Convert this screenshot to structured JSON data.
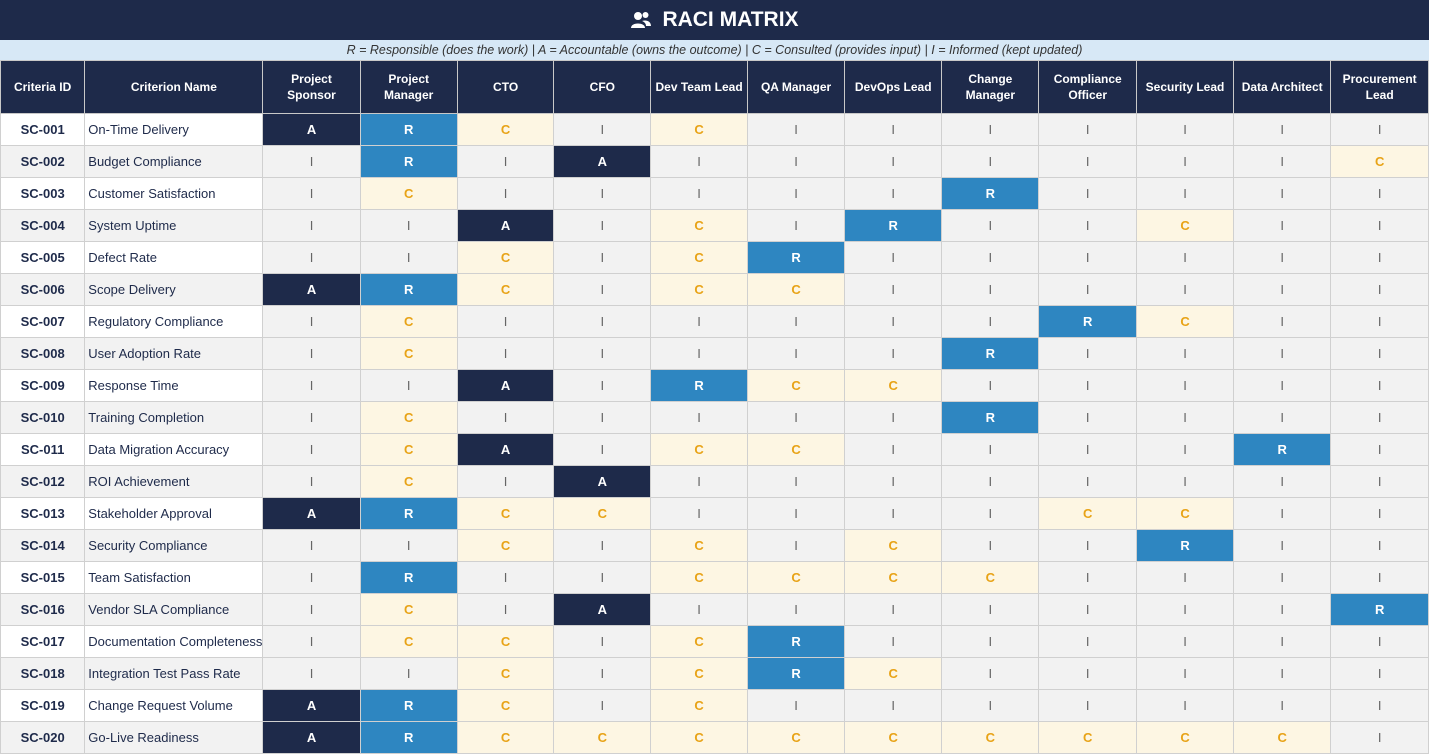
{
  "title": "RACI MATRIX",
  "legend": "R = Responsible (does the work)  |  A = Accountable (owns the outcome)  |  C = Consulted (provides input)  |  I = Informed (kept updated)",
  "colors": {
    "accountable": "#1e2a4a",
    "responsible": "#2e86c1",
    "consulted": "#fdf6e3",
    "informed": "#f2f2f2"
  },
  "columns": [
    "Criteria ID",
    "Criterion Name",
    "Project Sponsor",
    "Project Manager",
    "CTO",
    "CFO",
    "Dev Team Lead",
    "QA Manager",
    "DevOps Lead",
    "Change Manager",
    "Compliance Officer",
    "Security Lead",
    "Data Architect",
    "Procurement Lead"
  ],
  "rows": [
    {
      "id": "SC-001",
      "name": "On-Time Delivery",
      "roles": [
        "A",
        "R",
        "C",
        "I",
        "C",
        "I",
        "I",
        "I",
        "I",
        "I",
        "I",
        "I"
      ]
    },
    {
      "id": "SC-002",
      "name": "Budget Compliance",
      "roles": [
        "I",
        "R",
        "I",
        "A",
        "I",
        "I",
        "I",
        "I",
        "I",
        "I",
        "I",
        "C"
      ]
    },
    {
      "id": "SC-003",
      "name": "Customer Satisfaction",
      "roles": [
        "I",
        "C",
        "I",
        "I",
        "I",
        "I",
        "I",
        "R",
        "I",
        "I",
        "I",
        "I"
      ]
    },
    {
      "id": "SC-004",
      "name": "System Uptime",
      "roles": [
        "I",
        "I",
        "A",
        "I",
        "C",
        "I",
        "R",
        "I",
        "I",
        "C",
        "I",
        "I"
      ]
    },
    {
      "id": "SC-005",
      "name": "Defect Rate",
      "roles": [
        "I",
        "I",
        "C",
        "I",
        "C",
        "R",
        "I",
        "I",
        "I",
        "I",
        "I",
        "I"
      ]
    },
    {
      "id": "SC-006",
      "name": "Scope Delivery",
      "roles": [
        "A",
        "R",
        "C",
        "I",
        "C",
        "C",
        "I",
        "I",
        "I",
        "I",
        "I",
        "I"
      ]
    },
    {
      "id": "SC-007",
      "name": "Regulatory Compliance",
      "roles": [
        "I",
        "C",
        "I",
        "I",
        "I",
        "I",
        "I",
        "I",
        "R",
        "C",
        "I",
        "I"
      ]
    },
    {
      "id": "SC-008",
      "name": "User Adoption Rate",
      "roles": [
        "I",
        "C",
        "I",
        "I",
        "I",
        "I",
        "I",
        "R",
        "I",
        "I",
        "I",
        "I"
      ]
    },
    {
      "id": "SC-009",
      "name": "Response Time",
      "roles": [
        "I",
        "I",
        "A",
        "I",
        "R",
        "C",
        "C",
        "I",
        "I",
        "I",
        "I",
        "I"
      ]
    },
    {
      "id": "SC-010",
      "name": "Training Completion",
      "roles": [
        "I",
        "C",
        "I",
        "I",
        "I",
        "I",
        "I",
        "R",
        "I",
        "I",
        "I",
        "I"
      ]
    },
    {
      "id": "SC-011",
      "name": "Data Migration Accuracy",
      "roles": [
        "I",
        "C",
        "A",
        "I",
        "C",
        "C",
        "I",
        "I",
        "I",
        "I",
        "R",
        "I"
      ]
    },
    {
      "id": "SC-012",
      "name": "ROI Achievement",
      "roles": [
        "I",
        "C",
        "I",
        "A",
        "I",
        "I",
        "I",
        "I",
        "I",
        "I",
        "I",
        "I"
      ]
    },
    {
      "id": "SC-013",
      "name": "Stakeholder Approval",
      "roles": [
        "A",
        "R",
        "C",
        "C",
        "I",
        "I",
        "I",
        "I",
        "C",
        "C",
        "I",
        "I"
      ]
    },
    {
      "id": "SC-014",
      "name": "Security Compliance",
      "roles": [
        "I",
        "I",
        "C",
        "I",
        "C",
        "I",
        "C",
        "I",
        "I",
        "R",
        "I",
        "I"
      ]
    },
    {
      "id": "SC-015",
      "name": "Team Satisfaction",
      "roles": [
        "I",
        "R",
        "I",
        "I",
        "C",
        "C",
        "C",
        "C",
        "I",
        "I",
        "I",
        "I"
      ]
    },
    {
      "id": "SC-016",
      "name": "Vendor SLA Compliance",
      "roles": [
        "I",
        "C",
        "I",
        "A",
        "I",
        "I",
        "I",
        "I",
        "I",
        "I",
        "I",
        "R"
      ]
    },
    {
      "id": "SC-017",
      "name": "Documentation Completeness",
      "roles": [
        "I",
        "C",
        "C",
        "I",
        "C",
        "R",
        "I",
        "I",
        "I",
        "I",
        "I",
        "I"
      ]
    },
    {
      "id": "SC-018",
      "name": "Integration Test Pass Rate",
      "roles": [
        "I",
        "I",
        "C",
        "I",
        "C",
        "R",
        "C",
        "I",
        "I",
        "I",
        "I",
        "I"
      ]
    },
    {
      "id": "SC-019",
      "name": "Change Request Volume",
      "roles": [
        "A",
        "R",
        "C",
        "I",
        "C",
        "I",
        "I",
        "I",
        "I",
        "I",
        "I",
        "I"
      ]
    },
    {
      "id": "SC-020",
      "name": "Go-Live Readiness",
      "roles": [
        "A",
        "R",
        "C",
        "C",
        "C",
        "C",
        "C",
        "C",
        "C",
        "C",
        "C",
        "I"
      ]
    }
  ]
}
